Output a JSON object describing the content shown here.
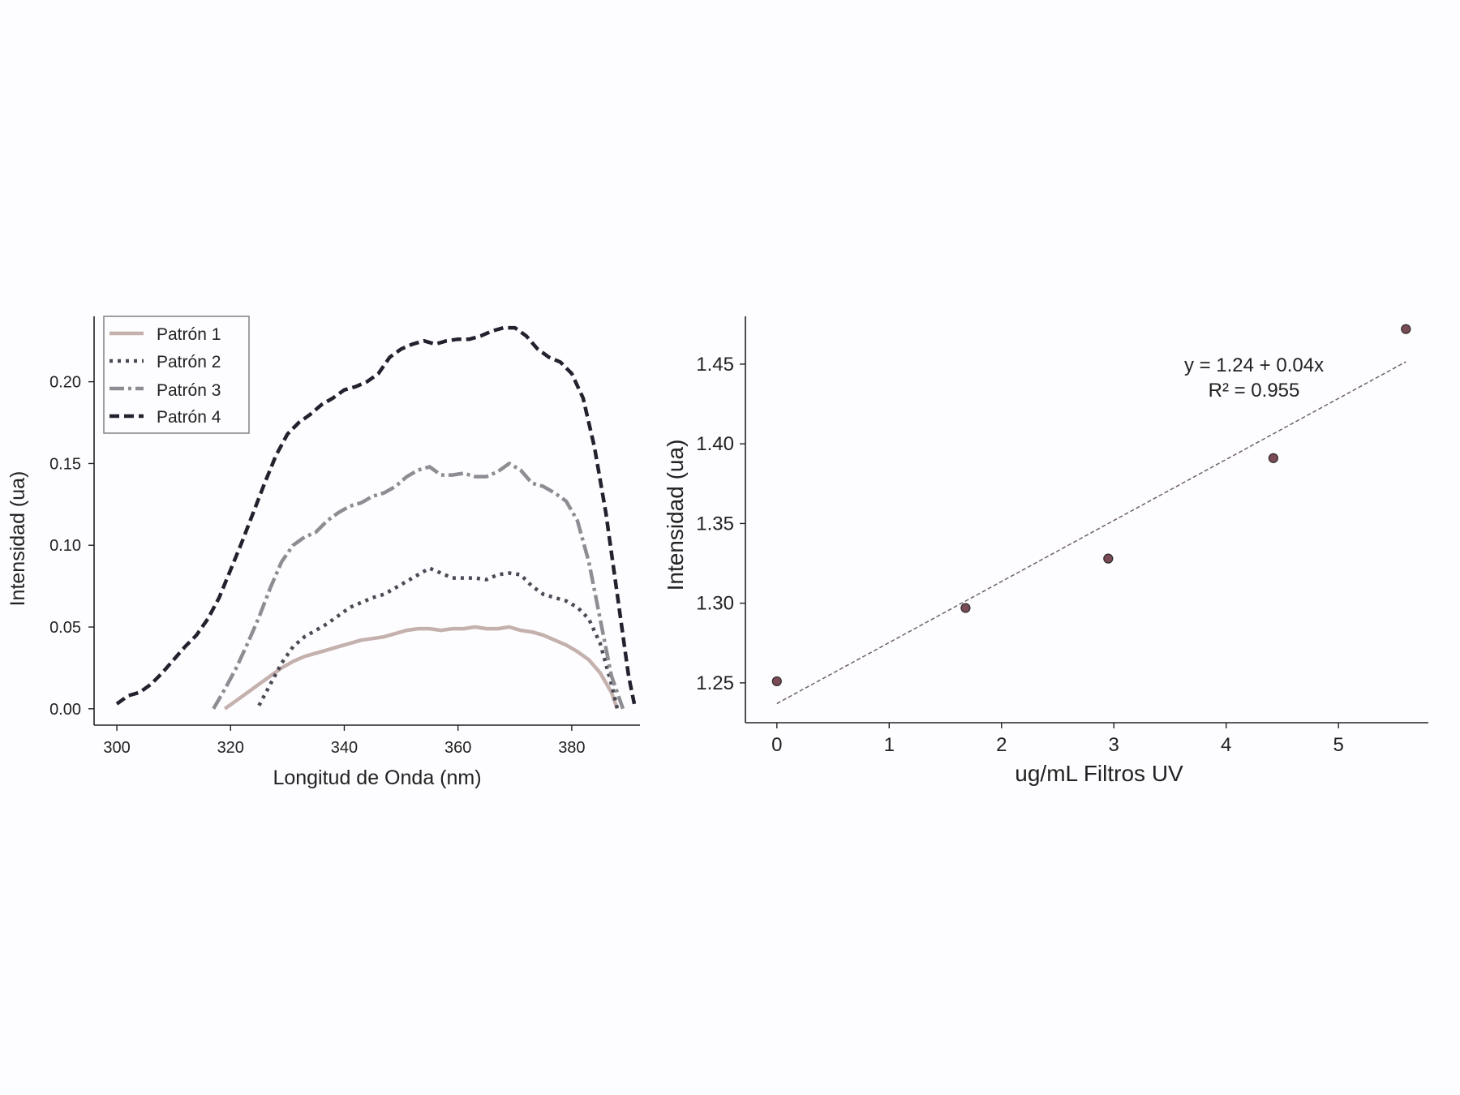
{
  "colors": {
    "background": "#fdfcfe",
    "axis": "#222222",
    "patron1": "#c4b1ae",
    "patron2": "#4a4a55",
    "patron3": "#8e8d93",
    "patron4": "#22222e",
    "scatter_fill": "#7a4a55",
    "fit_line": "#6e6268"
  },
  "chart_data": [
    {
      "type": "line",
      "xlabel": "Longitud de Onda (nm)",
      "ylabel": "Intensidad (ua)",
      "xlim": [
        296,
        392
      ],
      "ylim": [
        -0.01,
        0.24
      ],
      "xticks": [
        300,
        320,
        340,
        360,
        380
      ],
      "xtick_labels": [
        "300",
        "320",
        "340",
        "360",
        "380"
      ],
      "yticks": [
        0.0,
        0.05,
        0.1,
        0.15,
        0.2
      ],
      "ytick_labels": [
        "0.00",
        "0.05",
        "0.10",
        "0.15",
        "0.20"
      ],
      "legend_position": "top-left",
      "grid": false,
      "series": [
        {
          "name": "Patrón 1",
          "style": "solid",
          "x": [
            319,
            321,
            323,
            325,
            327,
            329,
            331,
            333,
            335,
            337,
            339,
            341,
            343,
            345,
            347,
            349,
            351,
            353,
            355,
            357,
            359,
            361,
            363,
            365,
            367,
            369,
            371,
            373,
            375,
            377,
            379,
            381,
            383,
            385,
            387,
            388
          ],
          "y": [
            0.0,
            0.005,
            0.01,
            0.015,
            0.02,
            0.025,
            0.029,
            0.032,
            0.034,
            0.036,
            0.038,
            0.04,
            0.042,
            0.043,
            0.044,
            0.046,
            0.048,
            0.049,
            0.049,
            0.048,
            0.049,
            0.049,
            0.05,
            0.049,
            0.049,
            0.05,
            0.048,
            0.047,
            0.045,
            0.042,
            0.039,
            0.035,
            0.03,
            0.022,
            0.01,
            0.0
          ]
        },
        {
          "name": "Patrón 2",
          "style": "dotted",
          "x": [
            325,
            327,
            329,
            331,
            333,
            335,
            337,
            339,
            341,
            343,
            345,
            347,
            349,
            351,
            353,
            355,
            357,
            359,
            361,
            363,
            365,
            367,
            369,
            371,
            373,
            375,
            377,
            379,
            381,
            383,
            385,
            387,
            388
          ],
          "y": [
            0.002,
            0.015,
            0.028,
            0.038,
            0.044,
            0.048,
            0.052,
            0.057,
            0.062,
            0.065,
            0.068,
            0.07,
            0.074,
            0.078,
            0.082,
            0.086,
            0.083,
            0.08,
            0.08,
            0.08,
            0.079,
            0.082,
            0.083,
            0.082,
            0.075,
            0.07,
            0.068,
            0.066,
            0.062,
            0.055,
            0.04,
            0.015,
            0.0
          ]
        },
        {
          "name": "Patrón 3",
          "style": "dashdot",
          "x": [
            317,
            319,
            321,
            323,
            325,
            327,
            329,
            331,
            333,
            335,
            337,
            339,
            341,
            343,
            345,
            347,
            349,
            351,
            353,
            355,
            357,
            359,
            361,
            363,
            365,
            367,
            369,
            371,
            373,
            375,
            377,
            379,
            381,
            383,
            385,
            387,
            389
          ],
          "y": [
            0.0,
            0.012,
            0.025,
            0.04,
            0.056,
            0.074,
            0.09,
            0.1,
            0.105,
            0.108,
            0.115,
            0.12,
            0.124,
            0.126,
            0.13,
            0.132,
            0.136,
            0.142,
            0.146,
            0.148,
            0.143,
            0.143,
            0.144,
            0.142,
            0.142,
            0.145,
            0.15,
            0.146,
            0.138,
            0.136,
            0.132,
            0.127,
            0.115,
            0.09,
            0.055,
            0.02,
            0.0
          ]
        },
        {
          "name": "Patrón 4",
          "style": "dashed",
          "x": [
            300,
            302,
            304,
            306,
            308,
            310,
            312,
            314,
            316,
            318,
            320,
            322,
            324,
            326,
            328,
            330,
            332,
            334,
            336,
            338,
            340,
            342,
            344,
            346,
            348,
            350,
            352,
            354,
            356,
            358,
            360,
            362,
            364,
            366,
            368,
            370,
            372,
            374,
            376,
            378,
            380,
            382,
            384,
            386,
            388,
            390,
            391
          ],
          "y": [
            0.003,
            0.008,
            0.01,
            0.015,
            0.022,
            0.03,
            0.038,
            0.045,
            0.055,
            0.068,
            0.085,
            0.102,
            0.12,
            0.138,
            0.155,
            0.168,
            0.175,
            0.18,
            0.186,
            0.19,
            0.195,
            0.197,
            0.2,
            0.205,
            0.215,
            0.22,
            0.223,
            0.225,
            0.223,
            0.225,
            0.226,
            0.226,
            0.228,
            0.231,
            0.233,
            0.233,
            0.228,
            0.22,
            0.215,
            0.212,
            0.205,
            0.19,
            0.16,
            0.12,
            0.07,
            0.02,
            0.003
          ]
        }
      ]
    },
    {
      "type": "scatter",
      "xlabel": "ug/mL Filtros UV",
      "ylabel": "Intensidad (ua)",
      "xlim": [
        -0.28,
        5.8
      ],
      "ylim": [
        1.225,
        1.48
      ],
      "xticks": [
        0,
        1,
        2,
        3,
        4,
        5
      ],
      "xtick_labels": [
        "0",
        "1",
        "2",
        "3",
        "4",
        "5"
      ],
      "yticks": [
        1.25,
        1.3,
        1.35,
        1.4,
        1.45
      ],
      "ytick_labels": [
        "1.25",
        "1.30",
        "1.35",
        "1.40",
        "1.45"
      ],
      "grid": false,
      "points": {
        "x": [
          0.0,
          1.68,
          2.95,
          4.42,
          5.6
        ],
        "y": [
          1.251,
          1.297,
          1.328,
          1.391,
          1.472
        ]
      },
      "fit": {
        "intercept": 1.237,
        "slope": 0.0383,
        "x_range": [
          0.0,
          5.6
        ]
      },
      "annotation": {
        "line1": "y = 1.24 + 0.04x",
        "line2": "R² = 0.955"
      }
    }
  ]
}
